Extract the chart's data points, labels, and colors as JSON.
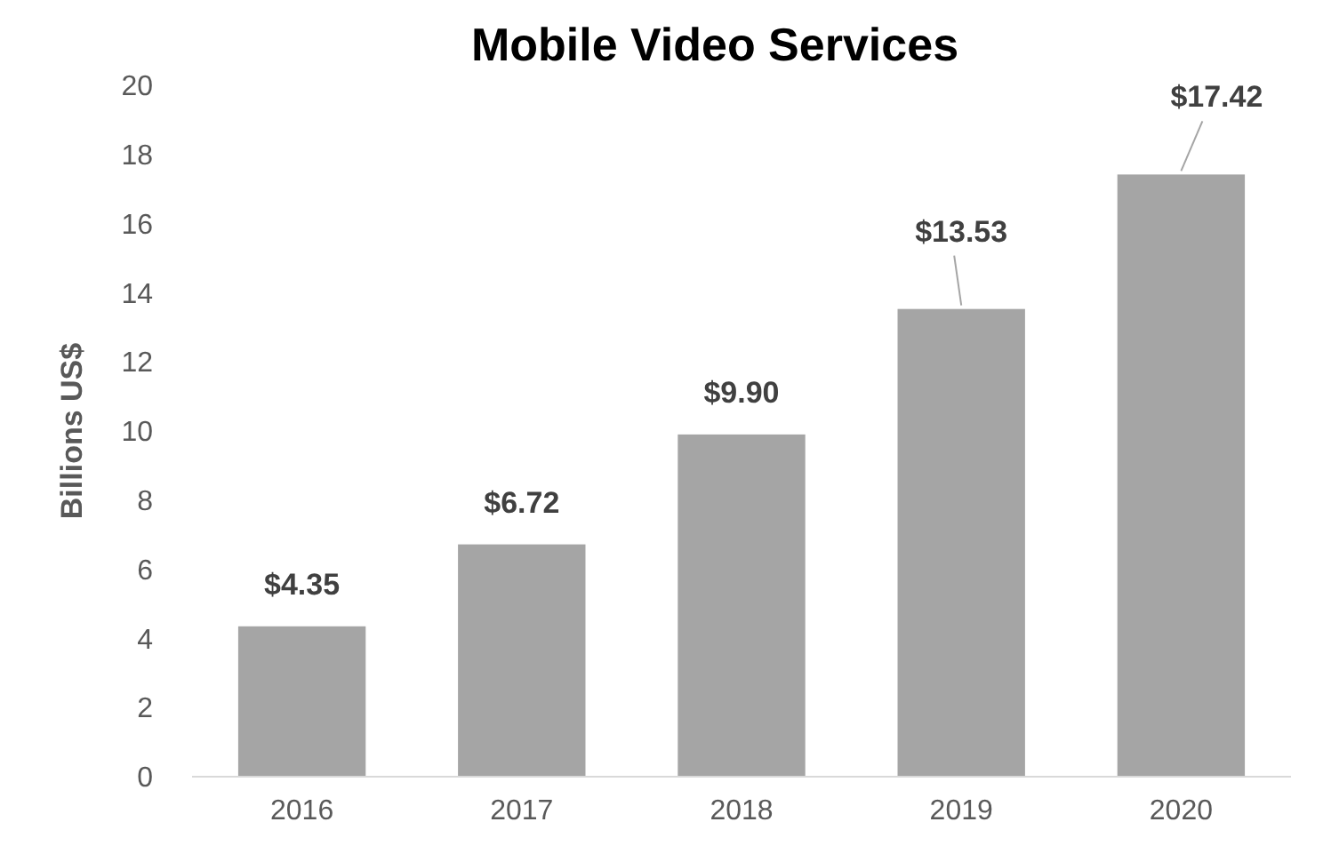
{
  "chart_data": {
    "type": "bar",
    "title": "Mobile Video Services",
    "ylabel": "Billions US$",
    "categories": [
      "2016",
      "2017",
      "2018",
      "2019",
      "2020"
    ],
    "values": [
      4.35,
      6.72,
      9.9,
      13.53,
      17.42
    ],
    "value_labels": [
      "$4.35",
      "$6.72",
      "$9.90",
      "$13.53",
      "$17.42"
    ],
    "color": "#a5a5a5",
    "ylim": [
      0,
      20
    ],
    "yticks": [
      0,
      2,
      4,
      6,
      8,
      10,
      12,
      14,
      16,
      18,
      20
    ],
    "grid": false
  }
}
